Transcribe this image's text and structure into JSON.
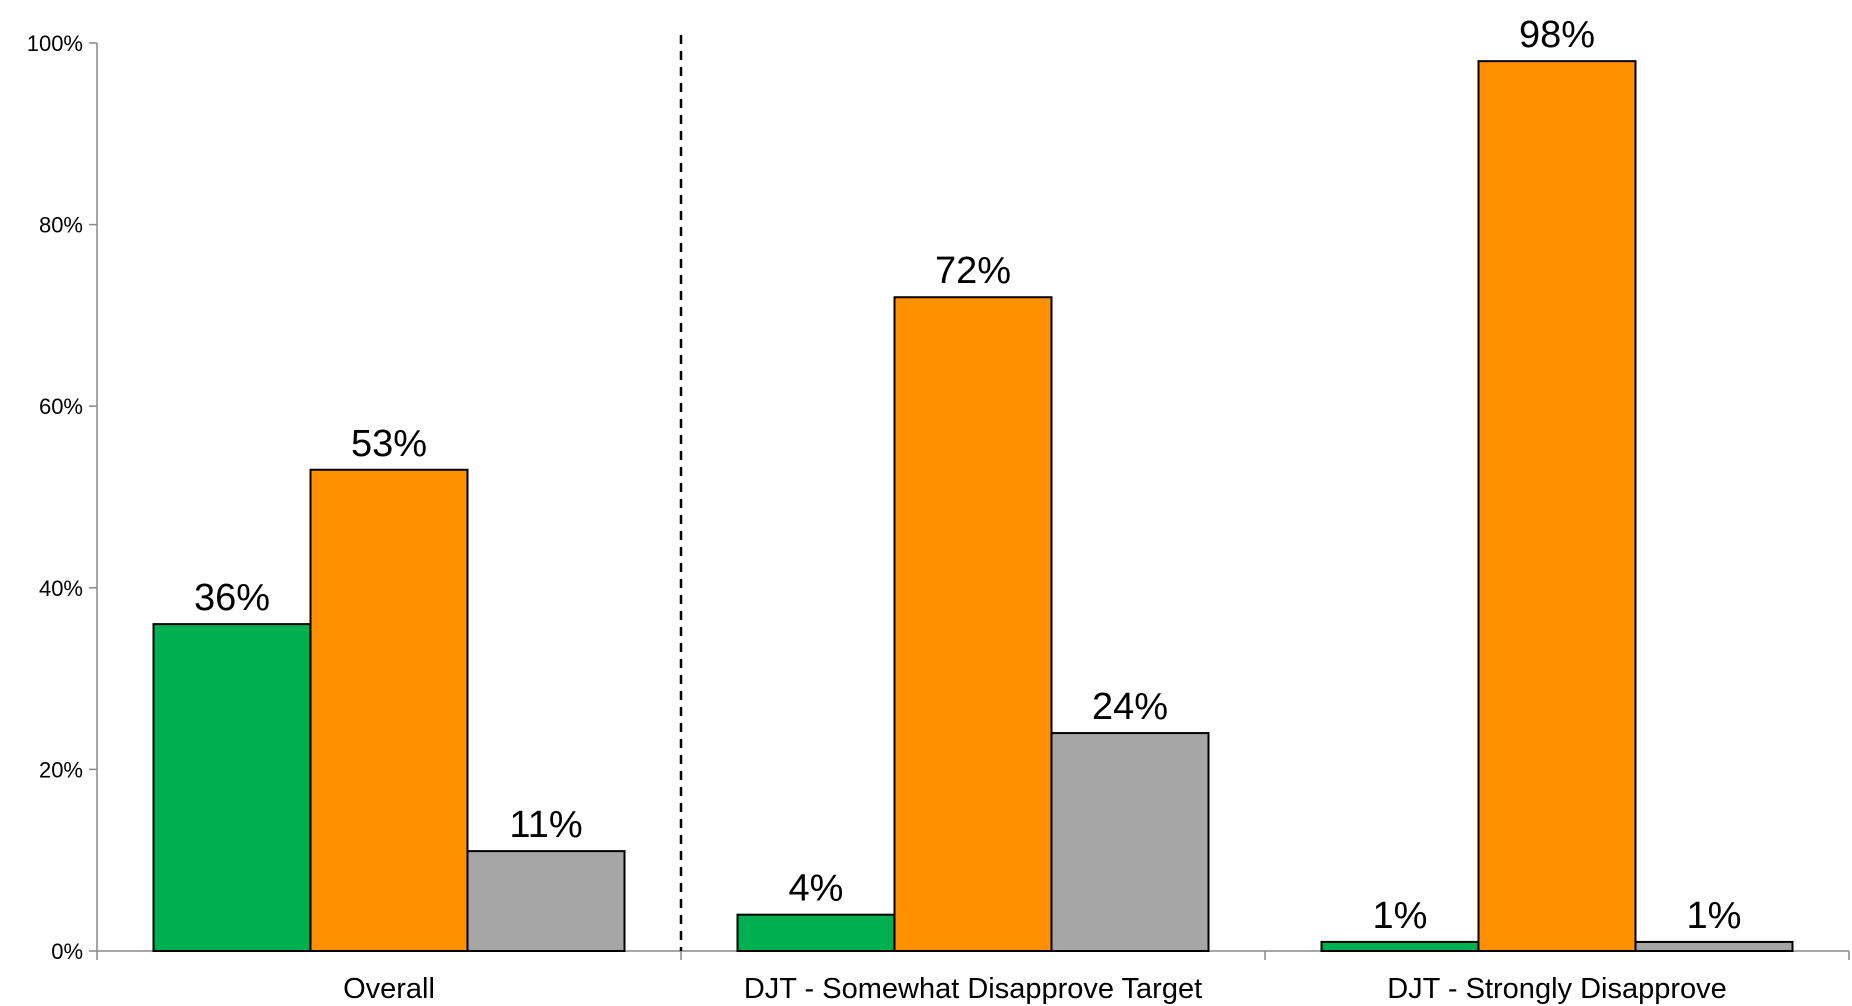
{
  "chart_data": {
    "type": "bar",
    "categories": [
      "Overall",
      "DJT - Somewhat Disapprove Target",
      "DJT - Strongly Disapprove"
    ],
    "series": [
      {
        "values": [
          36,
          4,
          1
        ],
        "color": "#00B050"
      },
      {
        "values": [
          53,
          72,
          98
        ],
        "color": "#FF9100"
      },
      {
        "values": [
          11,
          24,
          1
        ],
        "color": "#A6A6A6"
      }
    ],
    "data_labels": [
      [
        "36%",
        "4%",
        "1%"
      ],
      [
        "53%",
        "72%",
        "98%"
      ],
      [
        "11%",
        "24%",
        "1%"
      ]
    ],
    "yticks": [
      "0%",
      "20%",
      "40%",
      "60%",
      "80%",
      "100%"
    ],
    "ylim": [
      0,
      100
    ],
    "grid": false,
    "legend": "none",
    "divider_after_category": 0
  }
}
